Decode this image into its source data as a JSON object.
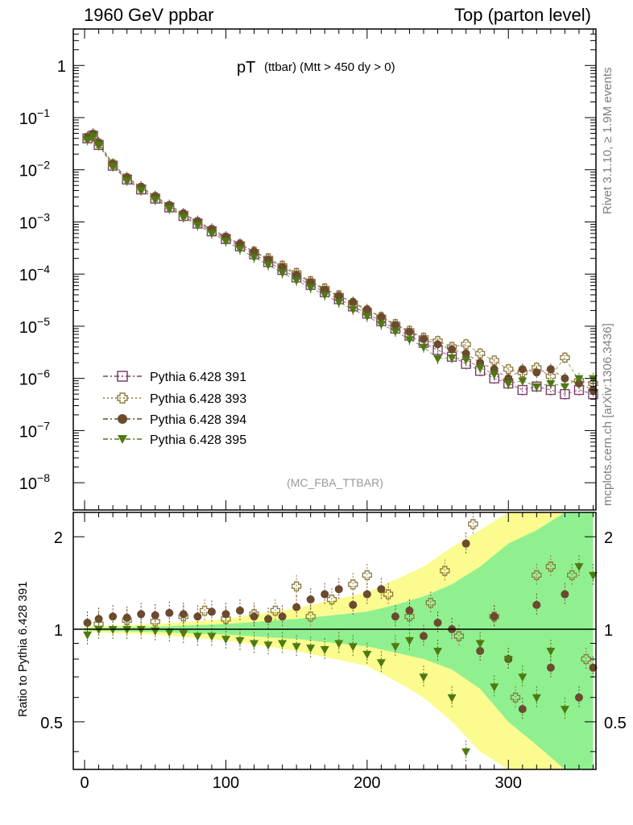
{
  "header": {
    "left": "1960 GeV ppbar",
    "right": "Top (parton level)"
  },
  "side_labels": {
    "rivet": "Rivet 3.1.10, ≥ 1.9M events",
    "mcplots": "mcplots.cern.ch [arXiv:1306.3436]"
  },
  "chart_data": [
    {
      "type": "scatter",
      "panel": "main",
      "title_main": "pT",
      "title_sub": "(ttbar) (Mtt > 450 dy > 0)",
      "watermark": "(MC_FBA_TTBAR)",
      "yscale": "log",
      "xlim": [
        -8,
        362
      ],
      "ylim": [
        3e-09,
        5
      ],
      "y_ticks": [
        {
          "value": 1,
          "label": "1"
        },
        {
          "value": 0.1,
          "label": "10^{-1}"
        },
        {
          "value": 0.01,
          "label": "10^{-2}"
        },
        {
          "value": 0.001,
          "label": "10^{-3}"
        },
        {
          "value": 0.0001,
          "label": "10^{-4}"
        },
        {
          "value": 1e-05,
          "label": "10^{-5}"
        },
        {
          "value": 1e-06,
          "label": "10^{-6}"
        },
        {
          "value": 1e-07,
          "label": "10^{-7}"
        },
        {
          "value": 1e-08,
          "label": "10^{-8}"
        }
      ],
      "legend_position": "bottom-left",
      "series": [
        {
          "name": "Pythia 6.428 391",
          "marker": "open-square",
          "color": "#7b3f6a",
          "x": [
            2,
            6,
            10,
            20,
            30,
            40,
            50,
            60,
            70,
            80,
            90,
            100,
            110,
            120,
            130,
            140,
            150,
            160,
            170,
            180,
            190,
            200,
            210,
            220,
            230,
            240,
            250,
            260,
            270,
            280,
            290,
            300,
            310,
            320,
            330,
            340,
            350,
            360
          ],
          "y": [
            0.04,
            0.045,
            0.03,
            0.012,
            0.0065,
            0.0042,
            0.0028,
            0.0019,
            0.0013,
            0.00093,
            0.00066,
            0.00047,
            0.00034,
            0.00024,
            0.00017,
            0.00012,
            8.6e-05,
            6.2e-05,
            4.5e-05,
            3.3e-05,
            2.4e-05,
            1.75e-05,
            1.25e-05,
            9e-06,
            6.6e-06,
            4.8e-06,
            3.5e-06,
            2.6e-06,
            1.9e-06,
            1.4e-06,
            1e-06,
            8e-07,
            6e-07,
            7e-07,
            6e-07,
            5e-07,
            6e-07,
            5e-07
          ]
        },
        {
          "name": "Pythia 6.428 393",
          "marker": "open-cross",
          "color": "#8c7a3c",
          "x": [
            2,
            6,
            10,
            20,
            30,
            40,
            50,
            60,
            70,
            80,
            90,
            100,
            110,
            120,
            130,
            140,
            150,
            160,
            170,
            180,
            190,
            200,
            210,
            220,
            230,
            240,
            250,
            260,
            270,
            280,
            290,
            300,
            310,
            320,
            330,
            340,
            350,
            360
          ],
          "y": [
            0.041,
            0.047,
            0.032,
            0.0128,
            0.0069,
            0.0045,
            0.003,
            0.002,
            0.0014,
            0.00099,
            0.0007,
            0.0005,
            0.00037,
            0.00027,
            0.0002,
            0.000145,
            0.000105,
            7.3e-05,
            5.3e-05,
            3.9e-05,
            2.8e-05,
            2e-05,
            1.5e-05,
            1.1e-05,
            8.2e-06,
            6e-06,
            5.2e-06,
            4e-06,
            4.5e-06,
            3e-06,
            2.2e-06,
            1.5e-06,
            1.3e-06,
            1.6e-06,
            1.1e-06,
            2.5e-06,
            9e-07,
            8e-07
          ]
        },
        {
          "name": "Pythia 6.428 394",
          "marker": "filled-circle",
          "color": "#6b4a2e",
          "x": [
            2,
            6,
            10,
            20,
            30,
            40,
            50,
            60,
            70,
            80,
            90,
            100,
            110,
            120,
            130,
            140,
            150,
            160,
            170,
            180,
            190,
            200,
            210,
            220,
            230,
            240,
            250,
            260,
            270,
            280,
            290,
            300,
            310,
            320,
            330,
            340,
            350,
            360
          ],
          "y": [
            0.042,
            0.049,
            0.033,
            0.013,
            0.0071,
            0.0047,
            0.0031,
            0.0021,
            0.00145,
            0.00103,
            0.00073,
            0.00052,
            0.00038,
            0.00027,
            0.00019,
            0.000137,
            9.7e-05,
            7e-05,
            5e-05,
            3.8e-05,
            2.9e-05,
            2.1e-05,
            1.5e-05,
            1.05e-05,
            7.8e-06,
            5.7e-06,
            4.5e-06,
            3.6e-06,
            3e-06,
            2e-06,
            1.5e-06,
            1e-06,
            1.5e-06,
            1.3e-06,
            1.5e-06,
            1e-06,
            8e-07,
            6e-07
          ]
        },
        {
          "name": "Pythia 6.428 395",
          "marker": "filled-triangle-down",
          "color": "#4e7a12",
          "x": [
            2,
            6,
            10,
            20,
            30,
            40,
            50,
            60,
            70,
            80,
            90,
            100,
            110,
            120,
            130,
            140,
            150,
            160,
            170,
            180,
            190,
            200,
            210,
            220,
            230,
            240,
            250,
            260,
            270,
            280,
            290,
            300,
            310,
            320,
            330,
            340,
            350,
            360
          ],
          "y": [
            0.038,
            0.044,
            0.03,
            0.0118,
            0.0063,
            0.0041,
            0.0027,
            0.00182,
            0.00124,
            0.00087,
            0.00061,
            0.00043,
            0.0003,
            0.00021,
            0.00015,
            0.000106,
            7.6e-05,
            5.5e-05,
            4e-05,
            2.9e-05,
            2.1e-05,
            1.55e-05,
            1.1e-05,
            8e-06,
            5.6e-06,
            4e-06,
            2.4e-06,
            2.5e-06,
            2.3e-06,
            1.6e-06,
            1.2e-06,
            8e-07,
            9e-07,
            7e-07,
            8e-07,
            7e-07,
            1e-06,
            1e-06
          ]
        }
      ]
    },
    {
      "type": "scatter",
      "panel": "ratio",
      "ylabel": "Ratio to Pythia 6.428 391",
      "yscale": "log",
      "xlim": [
        -8,
        362
      ],
      "ylim": [
        0.35,
        2.4
      ],
      "x_ticks": [
        0,
        100,
        200,
        300
      ],
      "y_ticks": [
        {
          "value": 0.5,
          "label": "0.5"
        },
        {
          "value": 1,
          "label": "1"
        },
        {
          "value": 2,
          "label": "2"
        }
      ],
      "reference_line": 1,
      "bands": [
        {
          "name": "1-sigma",
          "color": "#90f090",
          "x": [
            0,
            50,
            100,
            150,
            200,
            220,
            240,
            260,
            280,
            300,
            320,
            340,
            360
          ],
          "lower": [
            0.99,
            0.98,
            0.96,
            0.93,
            0.88,
            0.84,
            0.8,
            0.74,
            0.64,
            0.5,
            0.42,
            0.35,
            0.35
          ],
          "upper": [
            1.01,
            1.02,
            1.04,
            1.08,
            1.14,
            1.2,
            1.28,
            1.4,
            1.6,
            1.9,
            2.1,
            2.4,
            2.4
          ]
        },
        {
          "name": "2-sigma",
          "color": "#fbfb90",
          "x": [
            0,
            50,
            100,
            150,
            200,
            220,
            240,
            260,
            280,
            300,
            320,
            340,
            360
          ],
          "lower": [
            0.98,
            0.96,
            0.92,
            0.85,
            0.76,
            0.68,
            0.6,
            0.5,
            0.4,
            0.35,
            0.35,
            0.35,
            0.35
          ],
          "upper": [
            1.02,
            1.04,
            1.08,
            1.17,
            1.32,
            1.45,
            1.6,
            1.85,
            2.1,
            2.4,
            2.4,
            2.4,
            2.4
          ]
        }
      ],
      "series": [
        {
          "name": "Pythia 6.428 393",
          "marker": "open-cross",
          "color": "#8c7a3c",
          "x": [
            10,
            30,
            50,
            70,
            85,
            100,
            120,
            135,
            150,
            160,
            175,
            190,
            200,
            215,
            230,
            245,
            255,
            265,
            275,
            290,
            305,
            320,
            330,
            345,
            355
          ],
          "y": [
            1.04,
            1.07,
            1.06,
            1.1,
            1.15,
            1.08,
            1.12,
            1.15,
            1.38,
            1.1,
            1.25,
            1.4,
            1.5,
            1.3,
            1.1,
            1.22,
            1.55,
            0.95,
            2.2,
            1.1,
            0.6,
            1.5,
            1.6,
            1.5,
            0.8
          ]
        },
        {
          "name": "Pythia 6.428 394",
          "marker": "filled-circle",
          "color": "#6b4a2e",
          "x": [
            2,
            10,
            20,
            30,
            40,
            50,
            60,
            70,
            80,
            90,
            100,
            110,
            120,
            130,
            140,
            150,
            160,
            170,
            180,
            190,
            200,
            210,
            220,
            230,
            240,
            250,
            260,
            270,
            280,
            290,
            300,
            310,
            320,
            330,
            340,
            350,
            360
          ],
          "y": [
            1.05,
            1.08,
            1.1,
            1.09,
            1.12,
            1.11,
            1.13,
            1.12,
            1.1,
            1.14,
            1.12,
            1.15,
            1.1,
            1.08,
            1.1,
            1.18,
            1.25,
            1.3,
            1.35,
            1.2,
            1.3,
            1.35,
            1.1,
            1.15,
            0.95,
            1.05,
            1.0,
            1.9,
            0.85,
            1.1,
            0.8,
            0.55,
            1.2,
            0.75,
            1.3,
            0.6,
            0.75
          ]
        },
        {
          "name": "Pythia 6.428 395",
          "marker": "filled-triangle-down",
          "color": "#4e7a12",
          "x": [
            2,
            10,
            20,
            30,
            40,
            50,
            60,
            70,
            80,
            90,
            100,
            110,
            120,
            130,
            140,
            150,
            160,
            170,
            180,
            190,
            200,
            210,
            220,
            230,
            240,
            250,
            260,
            270,
            280,
            290,
            300,
            310,
            320,
            330,
            340,
            350,
            360
          ],
          "y": [
            0.96,
            1.0,
            1.0,
            1.0,
            1.0,
            0.99,
            0.98,
            0.97,
            0.95,
            0.95,
            0.93,
            0.92,
            0.9,
            0.89,
            0.9,
            0.88,
            0.87,
            0.86,
            0.9,
            0.88,
            0.83,
            0.78,
            0.88,
            0.92,
            0.7,
            0.85,
            0.6,
            0.4,
            0.9,
            0.65,
            0.8,
            0.7,
            0.6,
            0.85,
            0.55,
            1.6,
            1.5
          ]
        }
      ]
    }
  ]
}
